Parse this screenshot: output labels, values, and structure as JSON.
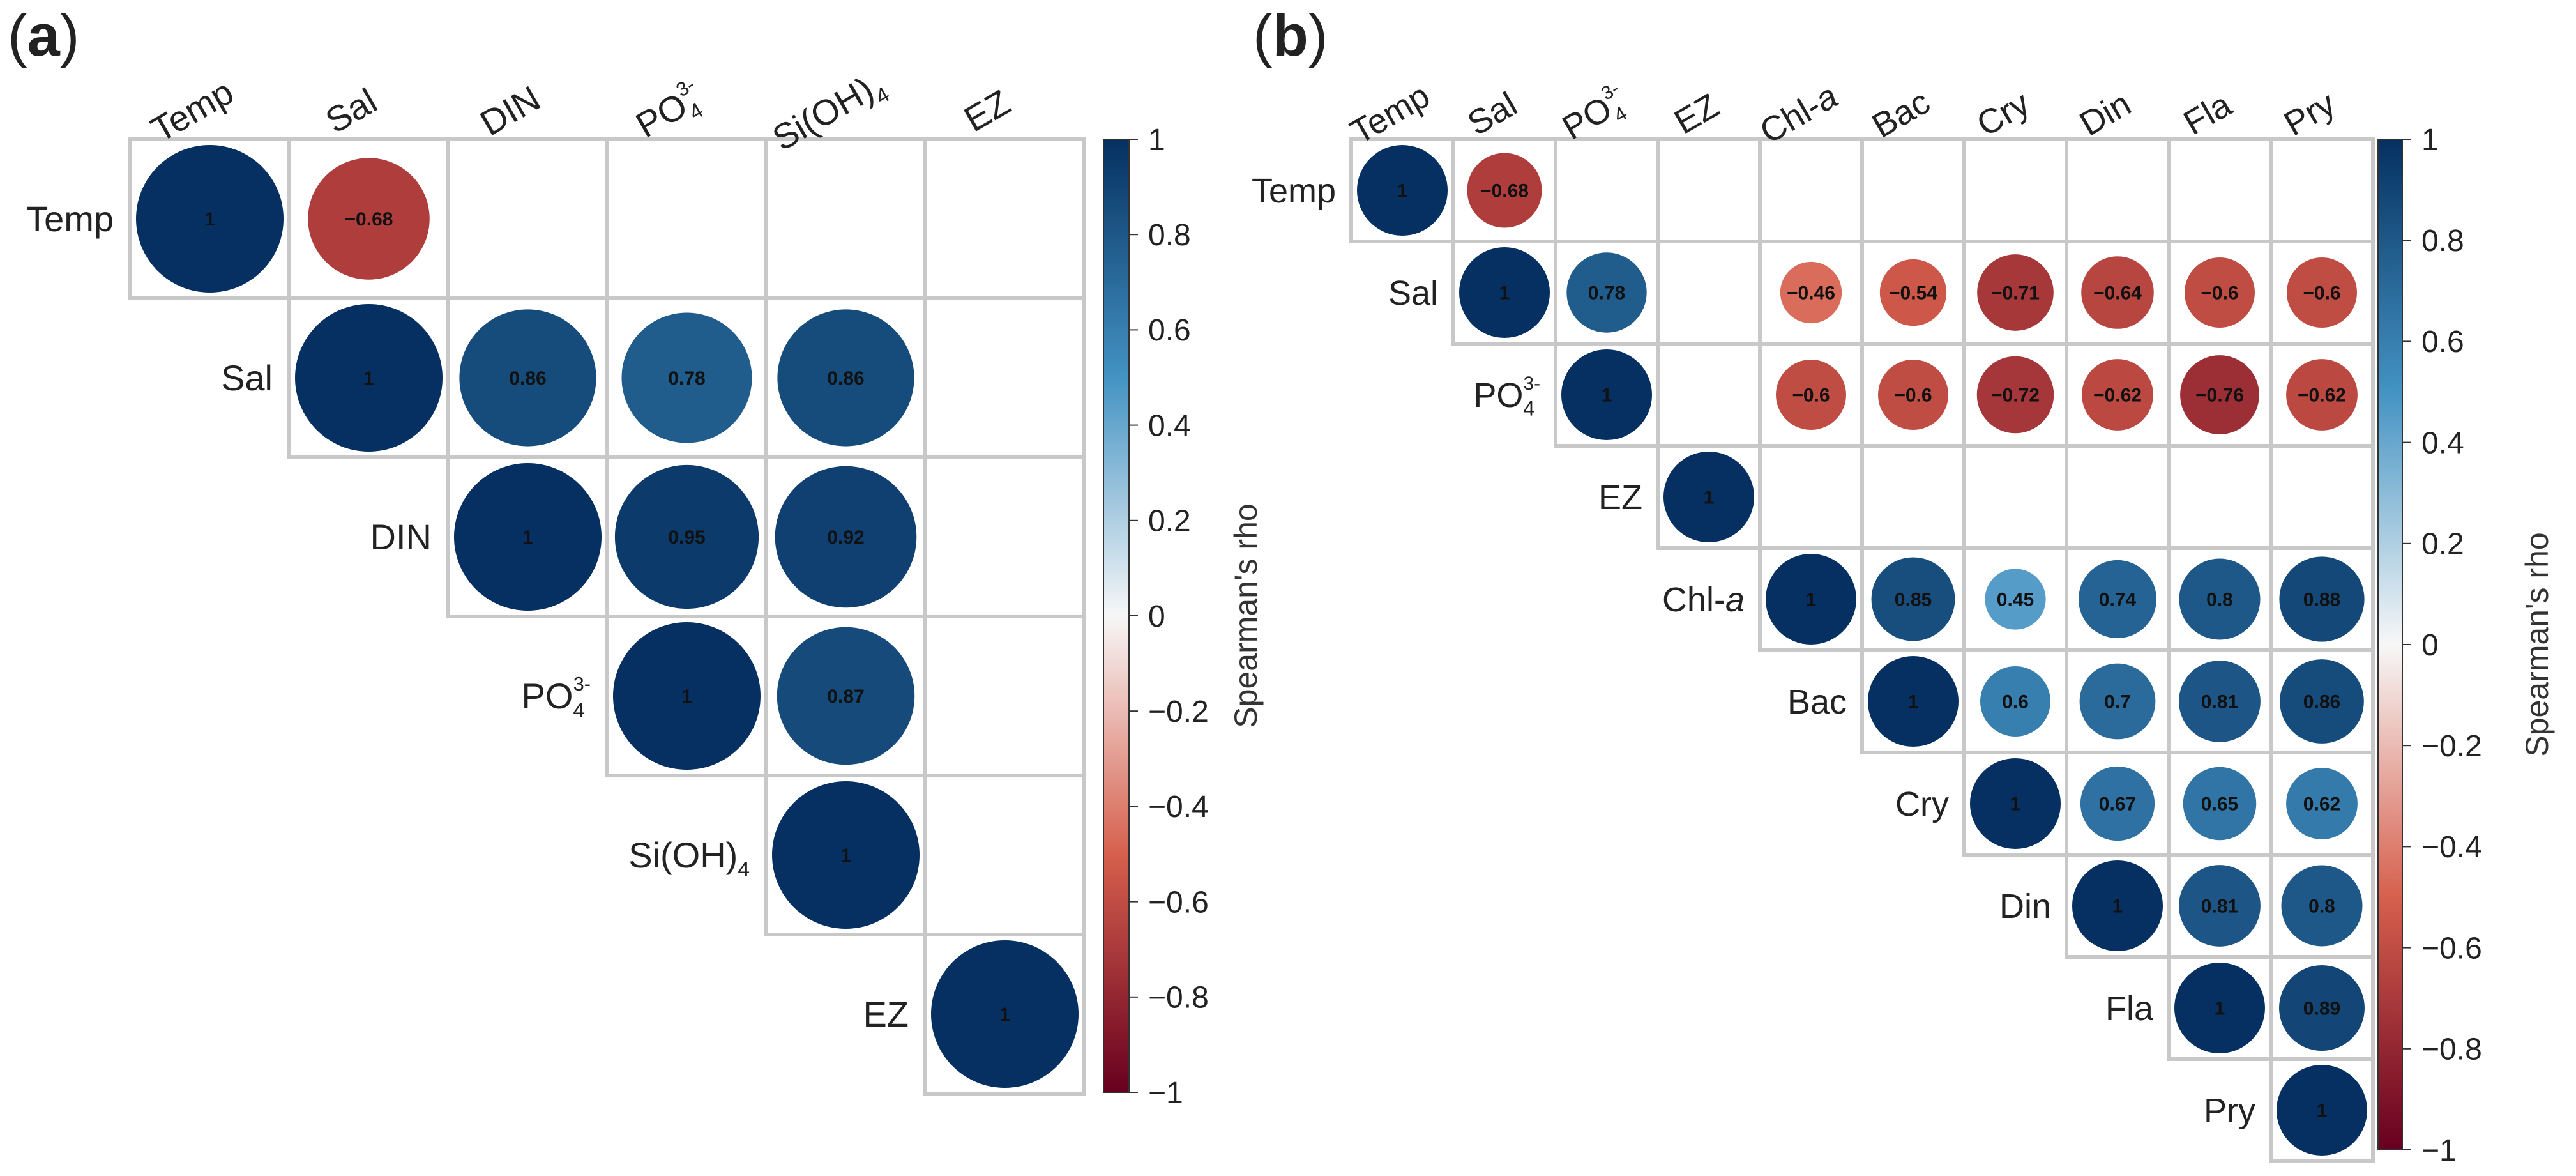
{
  "panel_labels": {
    "a_open": "(",
    "a": "a",
    "a_close": ")",
    "b_open": "(",
    "b": "b",
    "b_close": ")"
  },
  "colors": {
    "strong_neg": "#67001f",
    "neg": "#d6604d",
    "zero": "#f7f7f7",
    "pos": "#4393c3",
    "strong_pos": "#053061",
    "grid": "#c8c8c8"
  },
  "chart_data": [
    {
      "type": "heatmap",
      "subtype": "correlation-upper-triangle",
      "panel": "a",
      "variables": [
        {
          "main": "Temp",
          "sub": "",
          "sup": ""
        },
        {
          "main": "Sal",
          "sub": "",
          "sup": ""
        },
        {
          "main": "DIN",
          "sub": "",
          "sup": ""
        },
        {
          "main": "PO",
          "sub": "4",
          "sup": "3-"
        },
        {
          "main": "Si(OH)",
          "sub": "4",
          "sup": ""
        },
        {
          "main": "EZ",
          "sub": "",
          "sup": ""
        }
      ],
      "cells": [
        {
          "row": 0,
          "col": 0,
          "value": 1,
          "label": "1"
        },
        {
          "row": 0,
          "col": 1,
          "value": -0.68,
          "label": "−0.68"
        },
        {
          "row": 1,
          "col": 1,
          "value": 1,
          "label": "1"
        },
        {
          "row": 1,
          "col": 2,
          "value": 0.86,
          "label": "0.86"
        },
        {
          "row": 1,
          "col": 3,
          "value": 0.78,
          "label": "0.78"
        },
        {
          "row": 1,
          "col": 4,
          "value": 0.86,
          "label": "0.86"
        },
        {
          "row": 2,
          "col": 2,
          "value": 1,
          "label": "1"
        },
        {
          "row": 2,
          "col": 3,
          "value": 0.95,
          "label": "0.95"
        },
        {
          "row": 2,
          "col": 4,
          "value": 0.92,
          "label": "0.92"
        },
        {
          "row": 3,
          "col": 3,
          "value": 1,
          "label": "1"
        },
        {
          "row": 3,
          "col": 4,
          "value": 0.87,
          "label": "0.87"
        },
        {
          "row": 4,
          "col": 4,
          "value": 1,
          "label": "1"
        },
        {
          "row": 5,
          "col": 5,
          "value": 1,
          "label": "1"
        }
      ],
      "colorbar": {
        "label": "Spearman's rho",
        "range": [
          -1,
          1
        ],
        "ticks": [
          "1",
          "0.8",
          "0.6",
          "0.4",
          "0.2",
          "0",
          "−0.2",
          "−0.4",
          "−0.6",
          "−0.8",
          "−1"
        ],
        "tick_values": [
          1,
          0.8,
          0.6,
          0.4,
          0.2,
          0,
          -0.2,
          -0.4,
          -0.6,
          -0.8,
          -1
        ]
      }
    },
    {
      "type": "heatmap",
      "subtype": "correlation-upper-triangle",
      "panel": "b",
      "variables": [
        {
          "main": "Temp",
          "sub": "",
          "sup": "",
          "italic": ""
        },
        {
          "main": "Sal",
          "sub": "",
          "sup": "",
          "italic": ""
        },
        {
          "main": "PO",
          "sub": "4",
          "sup": "3-",
          "italic": ""
        },
        {
          "main": "EZ",
          "sub": "",
          "sup": "",
          "italic": ""
        },
        {
          "main": "Chl-",
          "sub": "",
          "sup": "",
          "italic": "a"
        },
        {
          "main": "Bac",
          "sub": "",
          "sup": "",
          "italic": ""
        },
        {
          "main": "Cry",
          "sub": "",
          "sup": "",
          "italic": ""
        },
        {
          "main": "Din",
          "sub": "",
          "sup": "",
          "italic": ""
        },
        {
          "main": "Fla",
          "sub": "",
          "sup": "",
          "italic": ""
        },
        {
          "main": "Pry",
          "sub": "",
          "sup": "",
          "italic": ""
        }
      ],
      "cells": [
        {
          "row": 0,
          "col": 0,
          "value": 1,
          "label": "1"
        },
        {
          "row": 0,
          "col": 1,
          "value": -0.68,
          "label": "−0.68"
        },
        {
          "row": 1,
          "col": 1,
          "value": 1,
          "label": "1"
        },
        {
          "row": 1,
          "col": 2,
          "value": 0.78,
          "label": "0.78"
        },
        {
          "row": 1,
          "col": 4,
          "value": -0.46,
          "label": "−0.46"
        },
        {
          "row": 1,
          "col": 5,
          "value": -0.54,
          "label": "−0.54"
        },
        {
          "row": 1,
          "col": 6,
          "value": -0.71,
          "label": "−0.71"
        },
        {
          "row": 1,
          "col": 7,
          "value": -0.64,
          "label": "−0.64"
        },
        {
          "row": 1,
          "col": 8,
          "value": -0.6,
          "label": "−0.6"
        },
        {
          "row": 1,
          "col": 9,
          "value": -0.6,
          "label": "−0.6"
        },
        {
          "row": 2,
          "col": 2,
          "value": 1,
          "label": "1"
        },
        {
          "row": 2,
          "col": 4,
          "value": -0.6,
          "label": "−0.6"
        },
        {
          "row": 2,
          "col": 5,
          "value": -0.6,
          "label": "−0.6"
        },
        {
          "row": 2,
          "col": 6,
          "value": -0.72,
          "label": "−0.72"
        },
        {
          "row": 2,
          "col": 7,
          "value": -0.62,
          "label": "−0.62"
        },
        {
          "row": 2,
          "col": 8,
          "value": -0.76,
          "label": "−0.76"
        },
        {
          "row": 2,
          "col": 9,
          "value": -0.62,
          "label": "−0.62"
        },
        {
          "row": 3,
          "col": 3,
          "value": 1,
          "label": "1"
        },
        {
          "row": 4,
          "col": 4,
          "value": 1,
          "label": "1"
        },
        {
          "row": 4,
          "col": 5,
          "value": 0.85,
          "label": "0.85"
        },
        {
          "row": 4,
          "col": 6,
          "value": 0.45,
          "label": "0.45"
        },
        {
          "row": 4,
          "col": 7,
          "value": 0.74,
          "label": "0.74"
        },
        {
          "row": 4,
          "col": 8,
          "value": 0.8,
          "label": "0.8"
        },
        {
          "row": 4,
          "col": 9,
          "value": 0.88,
          "label": "0.88"
        },
        {
          "row": 5,
          "col": 5,
          "value": 1,
          "label": "1"
        },
        {
          "row": 5,
          "col": 6,
          "value": 0.6,
          "label": "0.6"
        },
        {
          "row": 5,
          "col": 7,
          "value": 0.7,
          "label": "0.7"
        },
        {
          "row": 5,
          "col": 8,
          "value": 0.81,
          "label": "0.81"
        },
        {
          "row": 5,
          "col": 9,
          "value": 0.86,
          "label": "0.86"
        },
        {
          "row": 6,
          "col": 6,
          "value": 1,
          "label": "1"
        },
        {
          "row": 6,
          "col": 7,
          "value": 0.67,
          "label": "0.67"
        },
        {
          "row": 6,
          "col": 8,
          "value": 0.65,
          "label": "0.65"
        },
        {
          "row": 6,
          "col": 9,
          "value": 0.62,
          "label": "0.62"
        },
        {
          "row": 7,
          "col": 7,
          "value": 1,
          "label": "1"
        },
        {
          "row": 7,
          "col": 8,
          "value": 0.81,
          "label": "0.81"
        },
        {
          "row": 7,
          "col": 9,
          "value": 0.8,
          "label": "0.8"
        },
        {
          "row": 8,
          "col": 8,
          "value": 1,
          "label": "1"
        },
        {
          "row": 8,
          "col": 9,
          "value": 0.89,
          "label": "0.89"
        },
        {
          "row": 9,
          "col": 9,
          "value": 1,
          "label": "1"
        }
      ],
      "colorbar": {
        "label": "Spearman's rho",
        "range": [
          -1,
          1
        ],
        "ticks": [
          "1",
          "0.8",
          "0.6",
          "0.4",
          "0.2",
          "0",
          "−0.2",
          "−0.4",
          "−0.6",
          "−0.8",
          "−1"
        ],
        "tick_values": [
          1,
          0.8,
          0.6,
          0.4,
          0.2,
          0,
          -0.2,
          -0.4,
          -0.6,
          -0.8,
          -1
        ]
      }
    }
  ]
}
